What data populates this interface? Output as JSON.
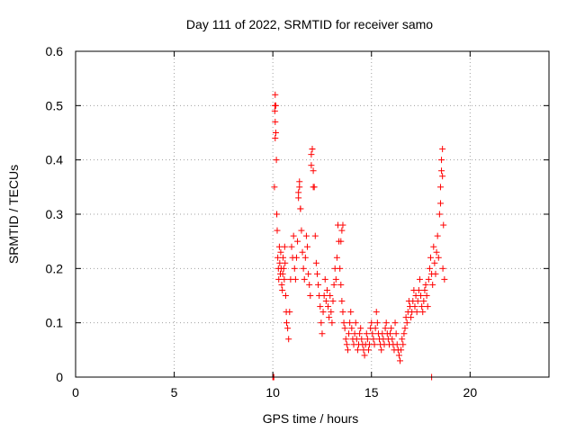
{
  "chart_data": {
    "type": "scatter",
    "title": "Day 111 of 2022, SRMTID for receiver samo",
    "xlabel": "GPS time / hours",
    "ylabel": "SRMTID / TECUs",
    "xlim": [
      0,
      24
    ],
    "ylim": [
      0,
      0.6
    ],
    "xticks": [
      0,
      5,
      10,
      15,
      20
    ],
    "xtick_labels": [
      "0",
      "5",
      "10",
      "15",
      "20"
    ],
    "yticks": [
      0,
      0.1,
      0.2,
      0.3,
      0.4,
      0.5,
      0.6
    ],
    "ytick_labels": [
      "0",
      "0.1",
      "0.2",
      "0.3",
      "0.4",
      "0.5",
      "0.6"
    ],
    "grid": true,
    "marker": "+",
    "color": "#ff0000",
    "series": [
      {
        "name": "samo",
        "x": [
          10.0,
          10.02,
          10.05,
          10.08,
          10.1,
          10.12,
          10.12,
          10.15,
          10.18,
          10.2,
          10.22,
          10.25,
          10.28,
          10.3,
          10.33,
          10.35,
          10.38,
          10.4,
          10.42,
          10.45,
          10.48,
          10.5,
          10.52,
          10.55,
          10.58,
          10.6,
          10.62,
          10.65,
          10.68,
          10.7,
          10.75,
          10.8,
          10.85,
          10.9,
          10.95,
          11.0,
          11.05,
          11.1,
          11.15,
          11.2,
          11.25,
          11.3,
          11.35,
          11.4,
          11.45,
          11.5,
          11.55,
          11.6,
          11.65,
          11.7,
          11.75,
          11.8,
          11.85,
          11.9,
          11.95,
          12.0,
          12.05,
          12.1,
          12.15,
          12.2,
          12.25,
          12.3,
          12.35,
          12.4,
          12.45,
          12.5,
          12.55,
          12.6,
          12.65,
          12.7,
          12.75,
          12.8,
          12.85,
          12.9,
          12.95,
          13.0,
          13.05,
          13.1,
          13.15,
          13.2,
          13.25,
          13.3,
          13.35,
          13.4,
          13.45,
          13.5,
          13.55,
          13.6,
          13.65,
          13.7,
          13.75,
          13.8,
          13.85,
          13.9,
          13.95,
          14.0,
          14.05,
          14.1,
          14.15,
          14.2,
          14.25,
          14.3,
          14.35,
          14.4,
          14.45,
          14.5,
          14.55,
          14.6,
          14.65,
          14.7,
          14.75,
          14.8,
          14.85,
          14.9,
          14.95,
          15.0,
          15.05,
          15.1,
          15.15,
          15.2,
          15.25,
          15.3,
          15.35,
          15.4,
          15.45,
          15.5,
          15.55,
          15.6,
          15.65,
          15.7,
          15.75,
          15.8,
          15.85,
          15.9,
          15.95,
          16.0,
          16.05,
          16.1,
          16.15,
          16.2,
          16.25,
          16.3,
          16.35,
          16.4,
          16.45,
          16.5,
          16.55,
          16.6,
          16.65,
          16.7,
          16.75,
          16.8,
          16.85,
          16.9,
          16.95,
          17.0,
          17.05,
          17.1,
          17.15,
          17.2,
          17.25,
          17.3,
          17.35,
          17.4,
          17.45,
          17.5,
          17.55,
          17.6,
          17.65,
          17.7,
          17.75,
          17.8,
          17.85,
          17.9,
          17.95,
          18.0,
          18.05,
          18.1,
          18.15,
          18.2,
          18.25,
          18.3,
          18.35,
          18.4,
          18.45,
          18.5,
          18.55,
          18.6,
          18.65,
          18.7,
          18.05,
          12.0,
          11.95,
          12.05,
          10.1,
          10.15,
          10.12,
          10.2,
          11.3,
          11.35,
          11.4,
          13.5,
          13.55,
          13.45,
          18.55,
          18.6,
          18.5,
          18.62
        ],
        "y": [
          0.0,
          0.0,
          0.0,
          0.35,
          0.5,
          0.52,
          0.47,
          0.45,
          0.4,
          0.3,
          0.27,
          0.22,
          0.2,
          0.18,
          0.24,
          0.21,
          0.19,
          0.23,
          0.2,
          0.17,
          0.16,
          0.19,
          0.22,
          0.2,
          0.18,
          0.24,
          0.21,
          0.15,
          0.12,
          0.1,
          0.09,
          0.07,
          0.12,
          0.18,
          0.24,
          0.22,
          0.26,
          0.2,
          0.18,
          0.22,
          0.25,
          0.33,
          0.35,
          0.31,
          0.27,
          0.23,
          0.2,
          0.18,
          0.22,
          0.26,
          0.24,
          0.19,
          0.17,
          0.15,
          0.39,
          0.42,
          0.38,
          0.35,
          0.26,
          0.21,
          0.19,
          0.17,
          0.15,
          0.13,
          0.1,
          0.08,
          0.12,
          0.15,
          0.18,
          0.14,
          0.16,
          0.13,
          0.11,
          0.15,
          0.12,
          0.1,
          0.14,
          0.17,
          0.2,
          0.18,
          0.22,
          0.28,
          0.25,
          0.2,
          0.17,
          0.14,
          0.12,
          0.1,
          0.09,
          0.07,
          0.06,
          0.05,
          0.08,
          0.1,
          0.12,
          0.09,
          0.07,
          0.06,
          0.08,
          0.1,
          0.07,
          0.05,
          0.06,
          0.08,
          0.09,
          0.07,
          0.06,
          0.05,
          0.04,
          0.06,
          0.08,
          0.07,
          0.05,
          0.06,
          0.09,
          0.1,
          0.08,
          0.07,
          0.06,
          0.09,
          0.12,
          0.1,
          0.08,
          0.07,
          0.06,
          0.05,
          0.08,
          0.07,
          0.06,
          0.09,
          0.1,
          0.08,
          0.07,
          0.06,
          0.08,
          0.09,
          0.07,
          0.06,
          0.05,
          0.1,
          0.08,
          0.06,
          0.05,
          0.04,
          0.03,
          0.05,
          0.07,
          0.06,
          0.08,
          0.09,
          0.11,
          0.1,
          0.12,
          0.14,
          0.13,
          0.11,
          0.12,
          0.14,
          0.16,
          0.13,
          0.15,
          0.12,
          0.14,
          0.16,
          0.18,
          0.15,
          0.13,
          0.12,
          0.14,
          0.16,
          0.17,
          0.15,
          0.13,
          0.18,
          0.2,
          0.22,
          0.19,
          0.17,
          0.24,
          0.21,
          0.19,
          0.23,
          0.26,
          0.22,
          0.3,
          0.35,
          0.38,
          0.42,
          0.28,
          0.18,
          0.0,
          0.42,
          0.41,
          0.35,
          0.49,
          0.5,
          0.44,
          0.3,
          0.34,
          0.36,
          0.31,
          0.27,
          0.28,
          0.25,
          0.4,
          0.37,
          0.32,
          0.2
        ]
      }
    ]
  }
}
